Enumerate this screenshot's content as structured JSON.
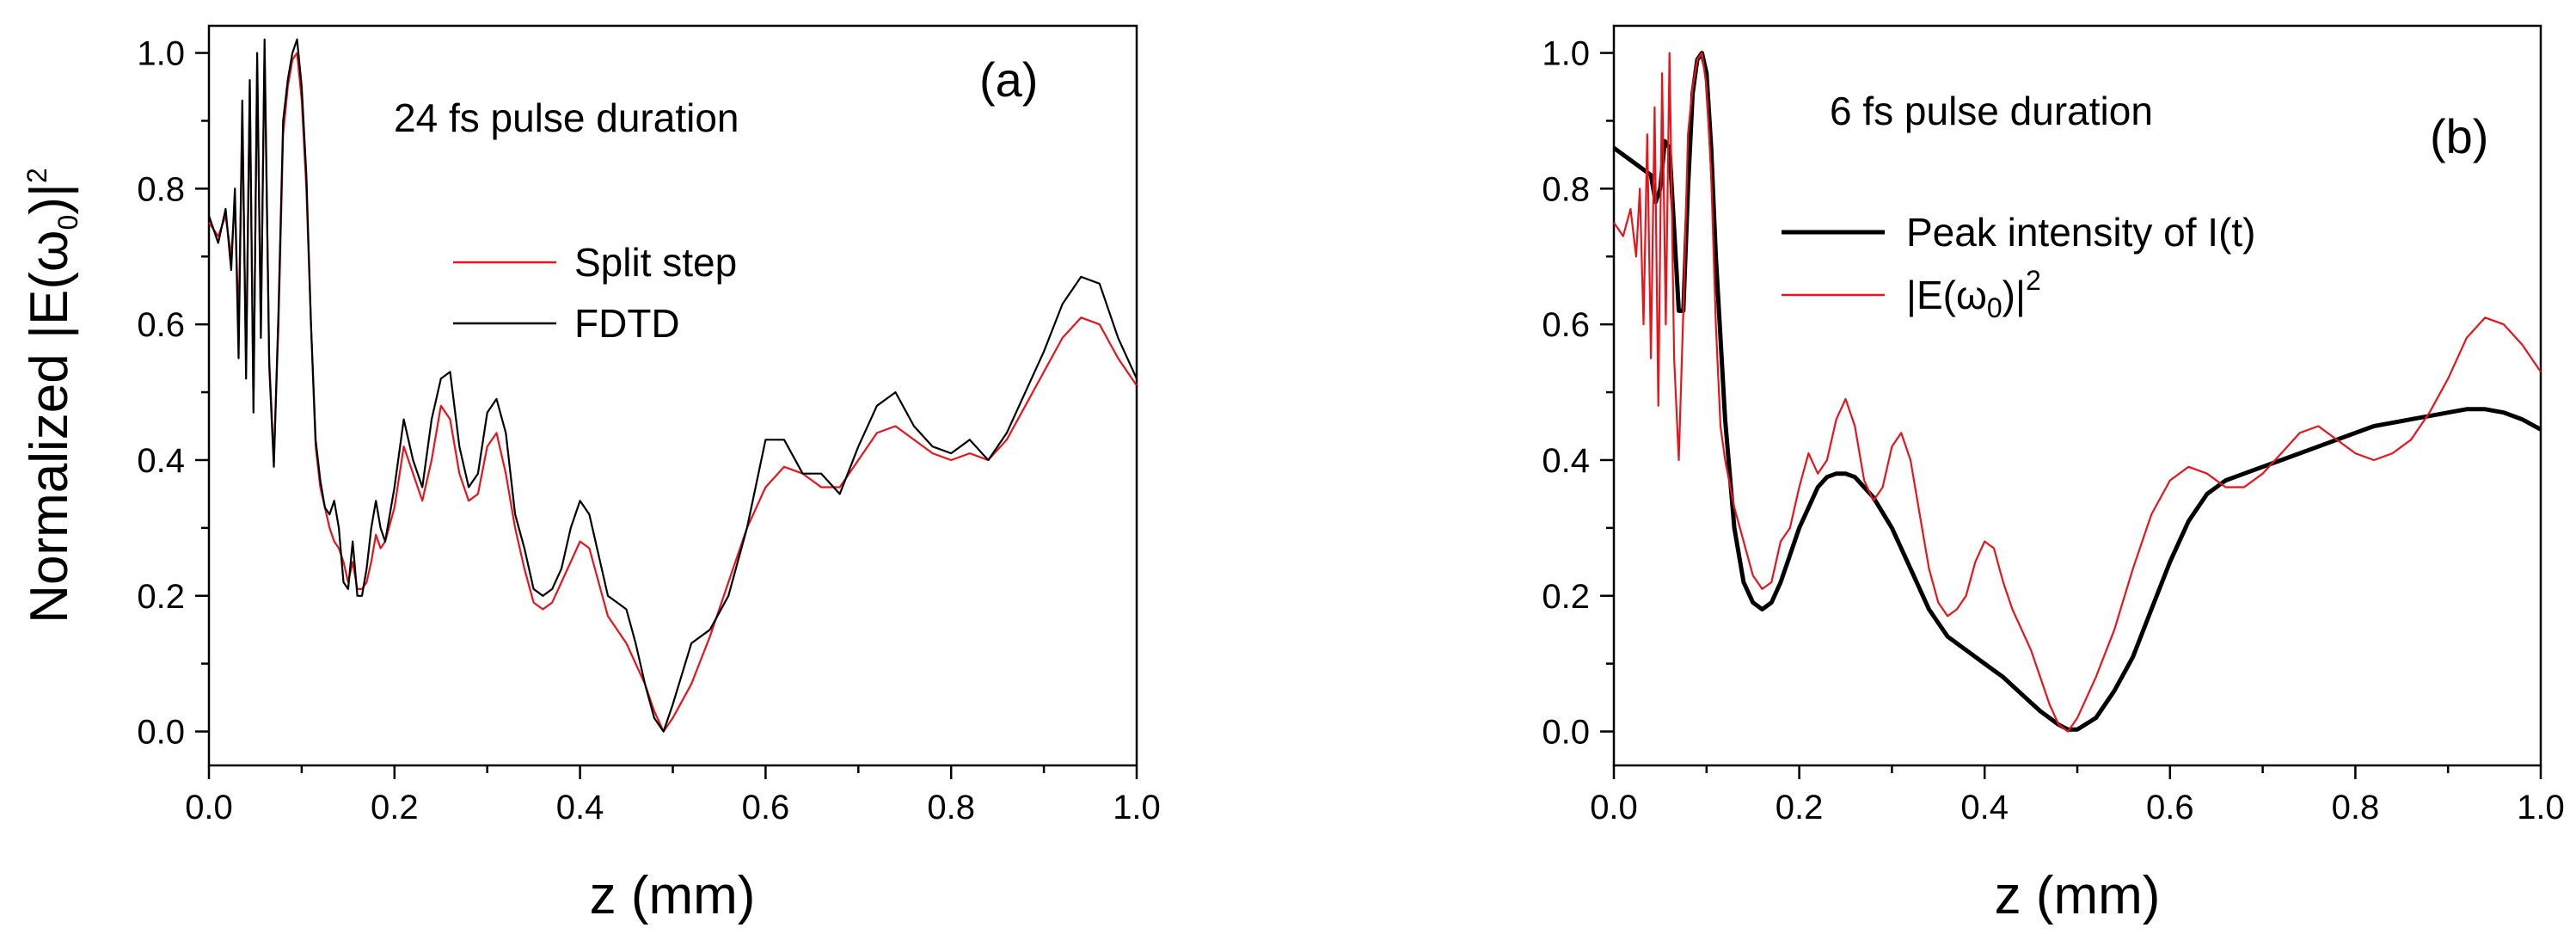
{
  "chart_data": [
    {
      "type": "line",
      "panel_label": "(a)",
      "annotation": "24 fs pulse duration",
      "xlabel": "z (mm)",
      "ylabel": "Normalized |E(ω0)|2",
      "xlim": [
        0,
        1
      ],
      "ylim": [
        -0.05,
        1.04
      ],
      "x_ticks": [
        "0.0",
        "0.2",
        "0.4",
        "0.6",
        "0.8",
        "1.0"
      ],
      "y_ticks": [
        "0.0",
        "0.2",
        "0.4",
        "0.6",
        "0.8",
        "1.0"
      ],
      "legend_position": "center",
      "series": [
        {
          "name": "Split step",
          "color": "#e8141b",
          "x": [
            0,
            0.01,
            0.018,
            0.024,
            0.028,
            0.032,
            0.036,
            0.04,
            0.044,
            0.048,
            0.052,
            0.056,
            0.06,
            0.065,
            0.07,
            0.075,
            0.08,
            0.085,
            0.09,
            0.095,
            0.1,
            0.105,
            0.11,
            0.115,
            0.12,
            0.125,
            0.13,
            0.135,
            0.14,
            0.145,
            0.15,
            0.155,
            0.16,
            0.165,
            0.17,
            0.175,
            0.18,
            0.185,
            0.19,
            0.2,
            0.21,
            0.22,
            0.23,
            0.24,
            0.25,
            0.26,
            0.27,
            0.28,
            0.29,
            0.3,
            0.31,
            0.32,
            0.33,
            0.34,
            0.35,
            0.36,
            0.37,
            0.38,
            0.39,
            0.4,
            0.41,
            0.42,
            0.43,
            0.44,
            0.45,
            0.46,
            0.47,
            0.48,
            0.49,
            0.5,
            0.52,
            0.54,
            0.56,
            0.58,
            0.6,
            0.62,
            0.64,
            0.66,
            0.68,
            0.7,
            0.72,
            0.74,
            0.76,
            0.78,
            0.8,
            0.82,
            0.84,
            0.86,
            0.88,
            0.9,
            0.92,
            0.94,
            0.96,
            0.98,
            1.0
          ],
          "y": [
            0.75,
            0.73,
            0.76,
            0.7,
            0.78,
            0.6,
            0.9,
            0.55,
            0.95,
            0.48,
            0.98,
            0.6,
            1.0,
            0.55,
            0.4,
            0.6,
            0.88,
            0.95,
            0.99,
            1.0,
            0.93,
            0.8,
            0.6,
            0.42,
            0.36,
            0.33,
            0.3,
            0.28,
            0.27,
            0.25,
            0.22,
            0.25,
            0.21,
            0.21,
            0.22,
            0.25,
            0.29,
            0.27,
            0.28,
            0.33,
            0.42,
            0.38,
            0.34,
            0.4,
            0.48,
            0.46,
            0.38,
            0.34,
            0.35,
            0.42,
            0.44,
            0.38,
            0.3,
            0.24,
            0.19,
            0.18,
            0.19,
            0.22,
            0.25,
            0.28,
            0.27,
            0.22,
            0.17,
            0.15,
            0.13,
            0.1,
            0.07,
            0.03,
            0.0,
            0.02,
            0.07,
            0.14,
            0.22,
            0.3,
            0.36,
            0.39,
            0.38,
            0.36,
            0.36,
            0.4,
            0.44,
            0.45,
            0.43,
            0.41,
            0.4,
            0.41,
            0.4,
            0.43,
            0.48,
            0.53,
            0.58,
            0.61,
            0.6,
            0.55,
            0.51
          ]
        },
        {
          "name": "FDTD",
          "color": "#000000",
          "x": [
            0,
            0.01,
            0.018,
            0.024,
            0.028,
            0.032,
            0.036,
            0.04,
            0.044,
            0.048,
            0.052,
            0.056,
            0.06,
            0.065,
            0.07,
            0.075,
            0.08,
            0.085,
            0.09,
            0.095,
            0.1,
            0.105,
            0.11,
            0.115,
            0.12,
            0.125,
            0.13,
            0.135,
            0.14,
            0.145,
            0.15,
            0.155,
            0.16,
            0.165,
            0.17,
            0.175,
            0.18,
            0.185,
            0.19,
            0.2,
            0.21,
            0.22,
            0.23,
            0.24,
            0.25,
            0.26,
            0.27,
            0.28,
            0.29,
            0.3,
            0.31,
            0.32,
            0.33,
            0.34,
            0.35,
            0.36,
            0.37,
            0.38,
            0.39,
            0.4,
            0.41,
            0.42,
            0.43,
            0.44,
            0.45,
            0.46,
            0.47,
            0.48,
            0.49,
            0.5,
            0.52,
            0.54,
            0.56,
            0.58,
            0.6,
            0.62,
            0.64,
            0.66,
            0.68,
            0.7,
            0.72,
            0.74,
            0.76,
            0.78,
            0.8,
            0.82,
            0.84,
            0.86,
            0.88,
            0.9,
            0.92,
            0.94,
            0.96,
            0.98,
            1.0
          ],
          "y": [
            0.76,
            0.72,
            0.77,
            0.68,
            0.8,
            0.55,
            0.93,
            0.52,
            0.96,
            0.47,
            1.0,
            0.58,
            1.02,
            0.54,
            0.39,
            0.62,
            0.9,
            0.96,
            1.0,
            1.02,
            0.95,
            0.82,
            0.6,
            0.43,
            0.37,
            0.33,
            0.32,
            0.34,
            0.3,
            0.22,
            0.21,
            0.28,
            0.2,
            0.2,
            0.24,
            0.3,
            0.34,
            0.3,
            0.28,
            0.36,
            0.46,
            0.4,
            0.36,
            0.46,
            0.52,
            0.53,
            0.42,
            0.36,
            0.38,
            0.47,
            0.49,
            0.44,
            0.32,
            0.27,
            0.21,
            0.2,
            0.21,
            0.24,
            0.3,
            0.34,
            0.32,
            0.26,
            0.2,
            0.19,
            0.18,
            0.13,
            0.07,
            0.02,
            0.0,
            0.04,
            0.13,
            0.15,
            0.2,
            0.3,
            0.43,
            0.43,
            0.38,
            0.38,
            0.35,
            0.42,
            0.48,
            0.5,
            0.45,
            0.42,
            0.41,
            0.43,
            0.4,
            0.44,
            0.5,
            0.56,
            0.63,
            0.67,
            0.66,
            0.58,
            0.52
          ]
        }
      ]
    },
    {
      "type": "line",
      "panel_label": "(b)",
      "annotation": "6 fs pulse duration",
      "xlabel": "z (mm)",
      "ylabel": "",
      "xlim": [
        0,
        1
      ],
      "ylim": [
        -0.05,
        1.04
      ],
      "x_ticks": [
        "0.0",
        "0.2",
        "0.4",
        "0.6",
        "0.8",
        "1.0"
      ],
      "y_ticks": [
        "0.0",
        "0.2",
        "0.4",
        "0.6",
        "0.8",
        "1.0"
      ],
      "legend_position": "center",
      "series": [
        {
          "name": "Peak intensity of I(t)",
          "color": "#000000",
          "x": [
            0,
            0.02,
            0.04,
            0.045,
            0.05,
            0.055,
            0.06,
            0.065,
            0.07,
            0.075,
            0.08,
            0.085,
            0.09,
            0.095,
            0.1,
            0.105,
            0.11,
            0.12,
            0.13,
            0.14,
            0.15,
            0.16,
            0.17,
            0.18,
            0.19,
            0.2,
            0.21,
            0.22,
            0.23,
            0.24,
            0.25,
            0.26,
            0.27,
            0.28,
            0.3,
            0.32,
            0.34,
            0.36,
            0.38,
            0.4,
            0.42,
            0.44,
            0.46,
            0.48,
            0.49,
            0.5,
            0.52,
            0.54,
            0.56,
            0.58,
            0.6,
            0.62,
            0.64,
            0.66,
            0.68,
            0.7,
            0.72,
            0.74,
            0.76,
            0.78,
            0.8,
            0.82,
            0.84,
            0.86,
            0.88,
            0.9,
            0.92,
            0.94,
            0.96,
            0.98,
            1.0
          ],
          "y": [
            0.86,
            0.84,
            0.82,
            0.78,
            0.8,
            0.87,
            0.86,
            0.74,
            0.62,
            0.62,
            0.8,
            0.94,
            0.99,
            1.0,
            0.97,
            0.86,
            0.7,
            0.46,
            0.3,
            0.22,
            0.19,
            0.18,
            0.19,
            0.22,
            0.26,
            0.3,
            0.33,
            0.36,
            0.375,
            0.38,
            0.38,
            0.375,
            0.36,
            0.345,
            0.3,
            0.24,
            0.18,
            0.14,
            0.12,
            0.1,
            0.08,
            0.055,
            0.03,
            0.01,
            0.003,
            0.003,
            0.02,
            0.06,
            0.11,
            0.18,
            0.25,
            0.31,
            0.35,
            0.37,
            0.38,
            0.39,
            0.4,
            0.41,
            0.42,
            0.43,
            0.44,
            0.45,
            0.455,
            0.46,
            0.465,
            0.47,
            0.475,
            0.475,
            0.47,
            0.46,
            0.445
          ]
        },
        {
          "name": "|E(ω0)|2",
          "color": "#e8141b",
          "x": [
            0,
            0.01,
            0.018,
            0.024,
            0.028,
            0.032,
            0.036,
            0.04,
            0.044,
            0.048,
            0.052,
            0.056,
            0.06,
            0.065,
            0.07,
            0.075,
            0.08,
            0.085,
            0.09,
            0.095,
            0.1,
            0.105,
            0.11,
            0.115,
            0.12,
            0.13,
            0.14,
            0.15,
            0.16,
            0.17,
            0.18,
            0.19,
            0.2,
            0.21,
            0.22,
            0.23,
            0.24,
            0.25,
            0.26,
            0.27,
            0.28,
            0.29,
            0.3,
            0.31,
            0.32,
            0.33,
            0.34,
            0.35,
            0.36,
            0.37,
            0.38,
            0.39,
            0.4,
            0.41,
            0.42,
            0.43,
            0.44,
            0.45,
            0.46,
            0.47,
            0.48,
            0.49,
            0.5,
            0.52,
            0.54,
            0.56,
            0.58,
            0.6,
            0.62,
            0.64,
            0.66,
            0.68,
            0.7,
            0.72,
            0.74,
            0.76,
            0.78,
            0.8,
            0.82,
            0.84,
            0.86,
            0.88,
            0.9,
            0.92,
            0.94,
            0.96,
            0.98,
            1.0
          ],
          "y": [
            0.75,
            0.73,
            0.77,
            0.7,
            0.8,
            0.6,
            0.88,
            0.55,
            0.92,
            0.48,
            0.97,
            0.6,
            1.0,
            0.55,
            0.4,
            0.62,
            0.88,
            0.95,
            0.99,
            1.0,
            0.95,
            0.82,
            0.6,
            0.45,
            0.4,
            0.33,
            0.28,
            0.23,
            0.21,
            0.22,
            0.28,
            0.3,
            0.36,
            0.41,
            0.38,
            0.4,
            0.46,
            0.49,
            0.45,
            0.37,
            0.34,
            0.36,
            0.42,
            0.44,
            0.4,
            0.32,
            0.24,
            0.19,
            0.17,
            0.18,
            0.2,
            0.25,
            0.28,
            0.27,
            0.22,
            0.18,
            0.15,
            0.12,
            0.08,
            0.04,
            0.01,
            0.0,
            0.02,
            0.08,
            0.15,
            0.24,
            0.32,
            0.37,
            0.39,
            0.38,
            0.36,
            0.36,
            0.38,
            0.41,
            0.44,
            0.45,
            0.43,
            0.41,
            0.4,
            0.41,
            0.43,
            0.47,
            0.52,
            0.58,
            0.61,
            0.6,
            0.57,
            0.53
          ]
        }
      ]
    }
  ]
}
